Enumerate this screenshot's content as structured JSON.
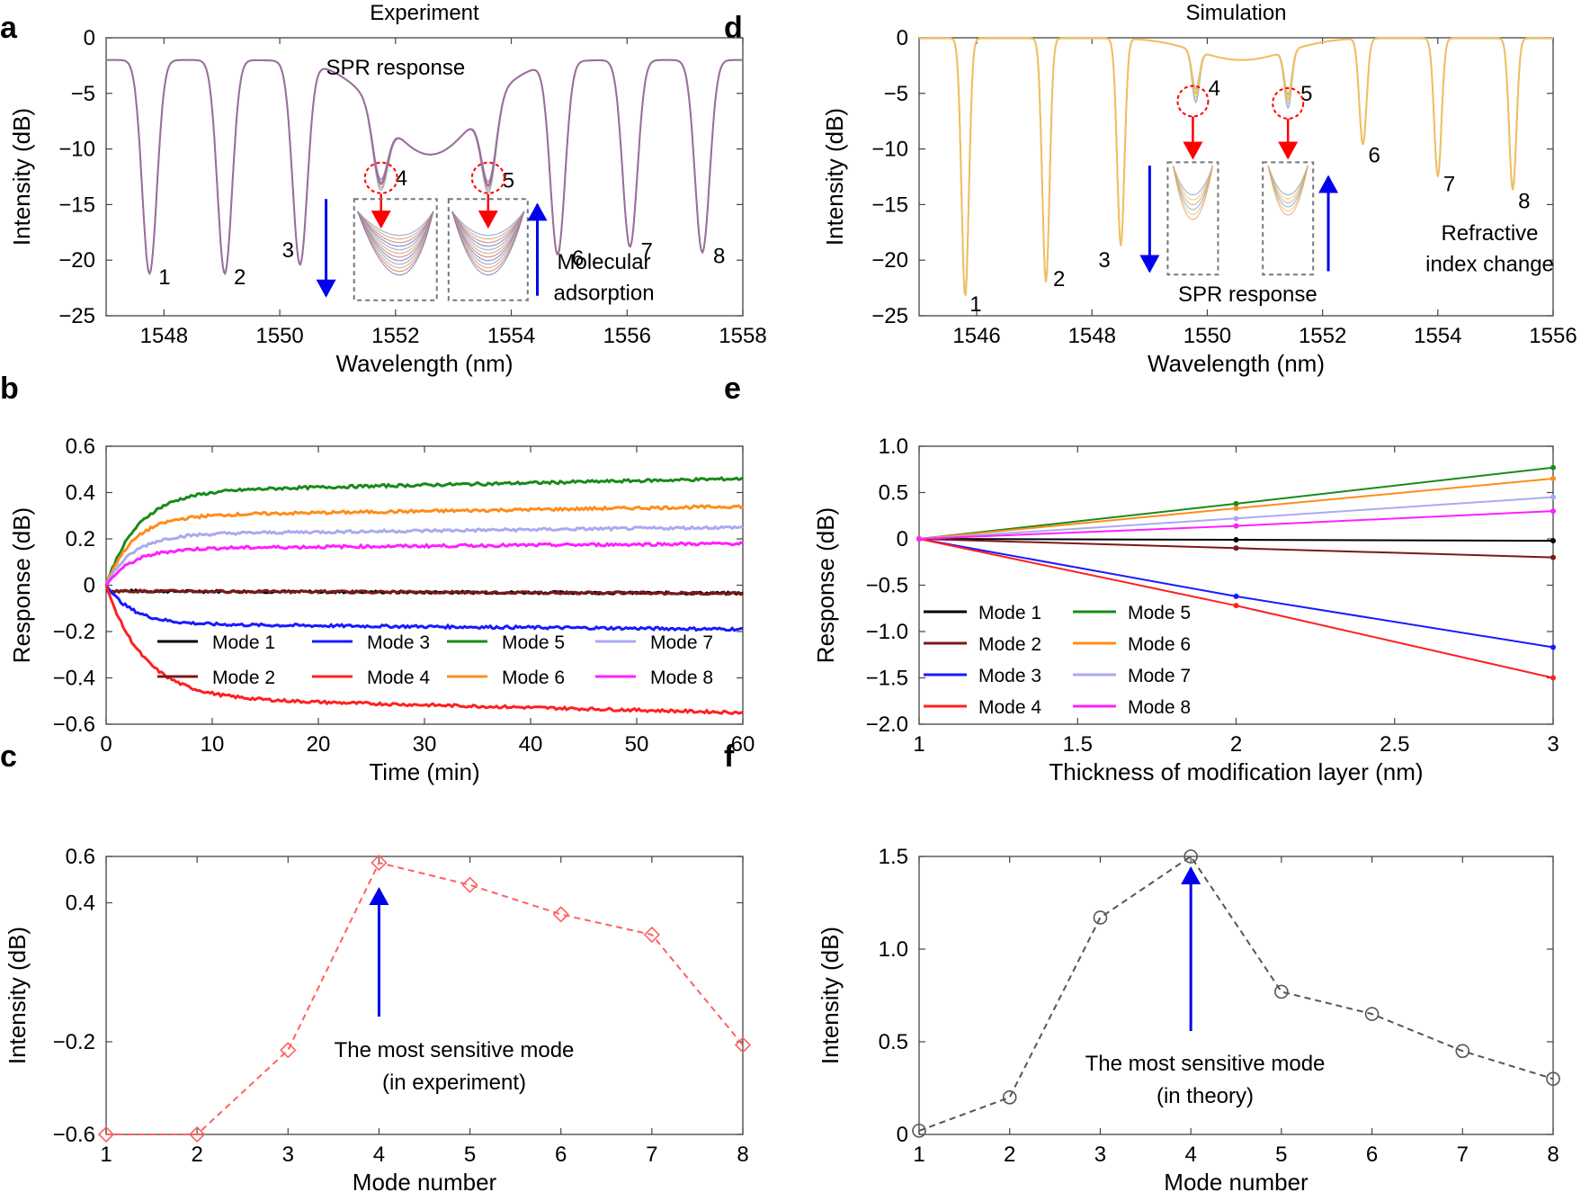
{
  "figure": {
    "panel_letters": [
      "a",
      "b",
      "c",
      "d",
      "e",
      "f"
    ]
  },
  "chart_data": [
    {
      "id": "a",
      "type": "line",
      "title": "Experiment",
      "xlabel": "Wavelength (nm)",
      "ylabel": "Intensity (dB)",
      "xlim": [
        1547,
        1558
      ],
      "ylim": [
        -25,
        0
      ],
      "xticks": [
        1548,
        1550,
        1552,
        1554,
        1556,
        1558
      ],
      "yticks": [
        0,
        -5,
        -10,
        -15,
        -20,
        -25
      ],
      "ytick_labels": [
        "0",
        "−5",
        "−10",
        "−15",
        "−20",
        "−25"
      ],
      "dips": [
        {
          "mode": "1",
          "x": 1547.75,
          "y": -21.2
        },
        {
          "mode": "2",
          "x": 1549.05,
          "y": -21.2
        },
        {
          "mode": "3",
          "x": 1550.35,
          "y": -20.4
        },
        {
          "mode": "4",
          "x": 1551.75,
          "y": -13.1
        },
        {
          "mode": "5",
          "x": 1553.6,
          "y": -13.3
        },
        {
          "mode": "6",
          "x": 1554.8,
          "y": -19.5
        },
        {
          "mode": "7",
          "x": 1556.05,
          "y": -18.8
        },
        {
          "mode": "8",
          "x": 1557.3,
          "y": -19.3
        }
      ],
      "annotations": {
        "spr": "SPR response",
        "adsorption_1": "Molecular",
        "adsorption_2": "adsorption"
      },
      "colors": {
        "spectrum": "#9a6e9e",
        "spr": "#ff0000",
        "blue": "#0000ee"
      }
    },
    {
      "id": "b",
      "type": "line",
      "xlabel": "Time (min)",
      "ylabel": "Response (dB)",
      "xlim": [
        0,
        60
      ],
      "ylim": [
        -0.6,
        0.6
      ],
      "xticks": [
        0,
        10,
        20,
        30,
        40,
        50,
        60
      ],
      "yticks": [
        0.6,
        0.4,
        0.2,
        0,
        -0.2,
        -0.4,
        -0.6
      ],
      "ytick_labels": [
        "0.6",
        "0.4",
        "0.2",
        "0",
        "−0.2",
        "−0.4",
        "−0.6"
      ],
      "series": [
        {
          "name": "Mode 1",
          "color": "#000000",
          "final": -0.01,
          "amp": 0.035,
          "tau": 2
        },
        {
          "name": "Mode 2",
          "color": "#7a1a1a",
          "final": -0.01,
          "amp": 0.035,
          "tau": 2
        },
        {
          "name": "Mode 3",
          "color": "#1a1aff",
          "final": -0.19,
          "amp": 0.19,
          "tau": 2.5
        },
        {
          "name": "Mode 4",
          "color": "#ff2020",
          "final": -0.55,
          "amp": 0.52,
          "tau": 3.5
        },
        {
          "name": "Mode 5",
          "color": "#1a8a1a",
          "final": 0.46,
          "amp": 0.38,
          "tau": 3
        },
        {
          "name": "Mode 6",
          "color": "#ff8c1a",
          "final": 0.34,
          "amp": 0.25,
          "tau": 2.5
        },
        {
          "name": "Mode 7",
          "color": "#aaaaf0",
          "final": 0.25,
          "amp": 0.16,
          "tau": 2.5
        },
        {
          "name": "Mode 8",
          "color": "#ff20ff",
          "final": 0.18,
          "amp": 0.08,
          "tau": 2.5
        }
      ]
    },
    {
      "id": "c",
      "type": "line",
      "xlabel": "Mode number",
      "ylabel": "Intensity (dB)",
      "xlim": [
        1,
        8
      ],
      "ylim": [
        -0.6,
        0.6
      ],
      "xticks": [
        1,
        2,
        3,
        4,
        5,
        6,
        7,
        8
      ],
      "yticks": [
        0.6,
        0.4,
        -0.2,
        -0.6
      ],
      "ytick_labels": [
        "0.6",
        "0.4",
        "−0.2",
        "−0.6"
      ],
      "x": [
        1,
        2,
        3,
        4,
        5,
        6,
        7,
        8
      ],
      "values": [
        -0.6,
        -0.6,
        -0.236,
        0.573,
        0.477,
        0.35,
        0.262,
        -0.214
      ],
      "marker": "diamond",
      "color": "#ff6060",
      "annotation": [
        "The most sensitive mode",
        "(in experiment)"
      ]
    },
    {
      "id": "d",
      "type": "line",
      "title": "Simulation",
      "xlabel": "Wavelength (nm)",
      "ylabel": "Intensity (dB)",
      "xlim": [
        1545,
        1556
      ],
      "ylim": [
        -25,
        0
      ],
      "xticks": [
        1546,
        1548,
        1550,
        1552,
        1554,
        1556
      ],
      "yticks": [
        0,
        -5,
        -10,
        -15,
        -20,
        -25
      ],
      "ytick_labels": [
        "0",
        "−5",
        "−10",
        "−15",
        "−20",
        "−25"
      ],
      "dips": [
        {
          "mode": "1",
          "x": 1545.8,
          "y": -23.3
        },
        {
          "mode": "2",
          "x": 1547.2,
          "y": -22.0
        },
        {
          "mode": "3",
          "x": 1548.5,
          "y": -18.7
        },
        {
          "mode": "4",
          "x": 1549.8,
          "y": -5.0
        },
        {
          "mode": "5",
          "x": 1551.4,
          "y": -5.5
        },
        {
          "mode": "6",
          "x": 1552.7,
          "y": -9.6
        },
        {
          "mode": "7",
          "x": 1554.0,
          "y": -12.5
        },
        {
          "mode": "8",
          "x": 1555.3,
          "y": -13.7
        }
      ],
      "annotations": {
        "spr": "SPR response",
        "ri_1": "Refractive",
        "ri_2": "index change"
      },
      "colors": {
        "spectrum": "#f0c060",
        "spr": "#ff0000",
        "blue": "#0000ee"
      }
    },
    {
      "id": "e",
      "type": "line",
      "xlabel": "Thickness of modification layer (nm)",
      "ylabel": "Response (dB)",
      "xlim": [
        1,
        3
      ],
      "ylim": [
        -2,
        1
      ],
      "xticks": [
        1,
        1.5,
        2,
        2.5,
        3
      ],
      "xtick_labels": [
        "1",
        "1.5",
        "2",
        "2.5",
        "3"
      ],
      "yticks": [
        1.0,
        0.5,
        0,
        -0.5,
        -1.0,
        -1.5,
        -2.0
      ],
      "ytick_labels": [
        "1.0",
        "0.5",
        "0",
        "−0.5",
        "−1.0",
        "−1.5",
        "−2.0"
      ],
      "x": [
        1,
        2,
        3
      ],
      "series": [
        {
          "name": "Mode 1",
          "color": "#000000",
          "values": [
            0,
            -0.01,
            -0.02
          ]
        },
        {
          "name": "Mode 2",
          "color": "#7a1a1a",
          "values": [
            0,
            -0.1,
            -0.2
          ]
        },
        {
          "name": "Mode 3",
          "color": "#1a1aff",
          "values": [
            0,
            -0.62,
            -1.17
          ]
        },
        {
          "name": "Mode 4",
          "color": "#ff2020",
          "values": [
            0,
            -0.72,
            -1.5
          ]
        },
        {
          "name": "Mode 5",
          "color": "#1a8a1a",
          "values": [
            0,
            0.38,
            0.77
          ]
        },
        {
          "name": "Mode 6",
          "color": "#ff8c1a",
          "values": [
            0,
            0.33,
            0.65
          ]
        },
        {
          "name": "Mode 7",
          "color": "#aaaaf0",
          "values": [
            0,
            0.22,
            0.45
          ]
        },
        {
          "name": "Mode 8",
          "color": "#ff20ff",
          "values": [
            0,
            0.14,
            0.3
          ]
        }
      ]
    },
    {
      "id": "f",
      "type": "line",
      "xlabel": "Mode number",
      "ylabel": "Intensity (dB)",
      "xlim": [
        1,
        8
      ],
      "ylim": [
        0,
        1.5
      ],
      "xticks": [
        1,
        2,
        3,
        4,
        5,
        6,
        7,
        8
      ],
      "yticks": [
        1.5,
        1.0,
        0.5,
        0
      ],
      "ytick_labels": [
        "1.5",
        "1.0",
        "0.5",
        "0"
      ],
      "x": [
        1,
        2,
        3,
        4,
        5,
        6,
        7,
        8
      ],
      "values": [
        0.02,
        0.2,
        1.17,
        1.5,
        0.77,
        0.65,
        0.45,
        0.3
      ],
      "marker": "circle",
      "color": "#555555",
      "annotation": [
        "The most sensitive mode",
        "(in theory)"
      ]
    }
  ]
}
